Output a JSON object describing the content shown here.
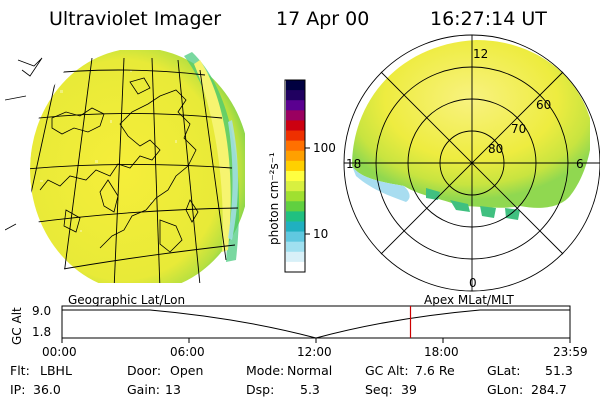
{
  "header": {
    "instrument": "Ultraviolet Imager",
    "date": "17 Apr 00",
    "time": "16:27:14 UT"
  },
  "colorbar": {
    "unit_label": "photon cm⁻²s⁻¹",
    "ticks": [
      "100",
      "10"
    ],
    "colors": [
      "#000040",
      "#200060",
      "#5a0090",
      "#9a0060",
      "#cc0010",
      "#ee3000",
      "#ff7000",
      "#ffa000",
      "#ffd000",
      "#ffff40",
      "#d8f040",
      "#a0e030",
      "#60d040",
      "#20c080",
      "#20b0c0",
      "#60c8e0",
      "#a0e0f0",
      "#d8f0f8",
      "#ffffff"
    ]
  },
  "polar_plot": {
    "mlt_labels": {
      "top": "12",
      "left": "18",
      "right": "6",
      "bottom": "0"
    },
    "lat_labels": [
      "60",
      "70",
      "80"
    ]
  },
  "timeline": {
    "y_axis_label": "GC Alt",
    "y_ticks": [
      "9.0",
      "1.8"
    ],
    "left_caption": "Geographic Lat/Lon",
    "right_caption": "Apex MLat/MLT",
    "time_ticks": [
      "00:00",
      "06:00",
      "12:00",
      "18:00",
      "23:59"
    ],
    "current_time_fraction": 0.686
  },
  "info_rows": [
    [
      {
        "label": "Flt:",
        "value": "LBHL"
      },
      {
        "label": "Door:",
        "value": "Open"
      },
      {
        "label": "Mode:",
        "value": "Normal"
      },
      {
        "label": "GC Alt:",
        "value": "7.6 Re"
      },
      {
        "label": "GLat:",
        "value": "51.3"
      }
    ],
    [
      {
        "label": "IP:",
        "value": "36.0"
      },
      {
        "label": "Gain:",
        "value": "13"
      },
      {
        "label": "Dsp:",
        "value": "5.3"
      },
      {
        "label": "Seq:",
        "value": "39"
      },
      {
        "label": "GLon:",
        "value": "284.7"
      }
    ]
  ]
}
